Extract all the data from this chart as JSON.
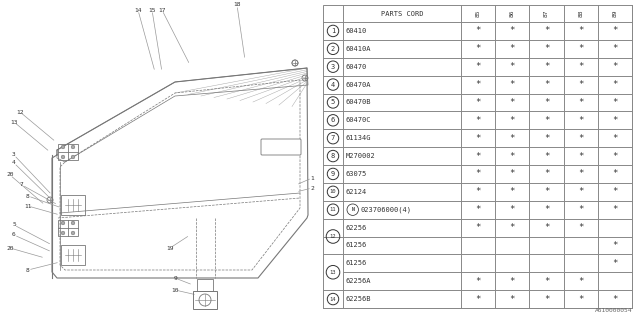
{
  "figure_code": "A610000054",
  "col_headers": [
    "85",
    "86",
    "87",
    "88",
    "89"
  ],
  "rows": [
    {
      "num": "1",
      "code": "60410",
      "stars": [
        1,
        1,
        1,
        1,
        1
      ],
      "split": false,
      "n_prefix": false
    },
    {
      "num": "2",
      "code": "60410A",
      "stars": [
        1,
        1,
        1,
        1,
        1
      ],
      "split": false,
      "n_prefix": false
    },
    {
      "num": "3",
      "code": "60470",
      "stars": [
        1,
        1,
        1,
        1,
        1
      ],
      "split": false,
      "n_prefix": false
    },
    {
      "num": "4",
      "code": "60470A",
      "stars": [
        1,
        1,
        1,
        1,
        1
      ],
      "split": false,
      "n_prefix": false
    },
    {
      "num": "5",
      "code": "60470B",
      "stars": [
        1,
        1,
        1,
        1,
        1
      ],
      "split": false,
      "n_prefix": false
    },
    {
      "num": "6",
      "code": "60470C",
      "stars": [
        1,
        1,
        1,
        1,
        1
      ],
      "split": false,
      "n_prefix": false
    },
    {
      "num": "7",
      "code": "61134G",
      "stars": [
        1,
        1,
        1,
        1,
        1
      ],
      "split": false,
      "n_prefix": false
    },
    {
      "num": "8",
      "code": "M270002",
      "stars": [
        1,
        1,
        1,
        1,
        1
      ],
      "split": false,
      "n_prefix": false
    },
    {
      "num": "9",
      "code": "63075",
      "stars": [
        1,
        1,
        1,
        1,
        1
      ],
      "split": false,
      "n_prefix": false
    },
    {
      "num": "10",
      "code": "62124",
      "stars": [
        1,
        1,
        1,
        1,
        1
      ],
      "split": false,
      "n_prefix": false
    },
    {
      "num": "11",
      "code": "023706000(4)",
      "stars": [
        1,
        1,
        1,
        1,
        1
      ],
      "split": false,
      "n_prefix": true
    },
    {
      "num": "12",
      "code": [
        "62256",
        "61256"
      ],
      "stars": [
        [
          1,
          1,
          1,
          1,
          0
        ],
        [
          0,
          0,
          0,
          0,
          1
        ]
      ],
      "split": true,
      "n_prefix": false
    },
    {
      "num": "13",
      "code": [
        "61256",
        "62256A"
      ],
      "stars": [
        [
          0,
          0,
          0,
          0,
          1
        ],
        [
          1,
          1,
          1,
          1,
          0
        ]
      ],
      "split": true,
      "n_prefix": false
    },
    {
      "num": "14",
      "code": "62256B",
      "stars": [
        1,
        1,
        1,
        1,
        1
      ],
      "split": false,
      "n_prefix": false
    }
  ],
  "bg_color": "#ffffff",
  "lc": "#888888",
  "tc": "#333333"
}
